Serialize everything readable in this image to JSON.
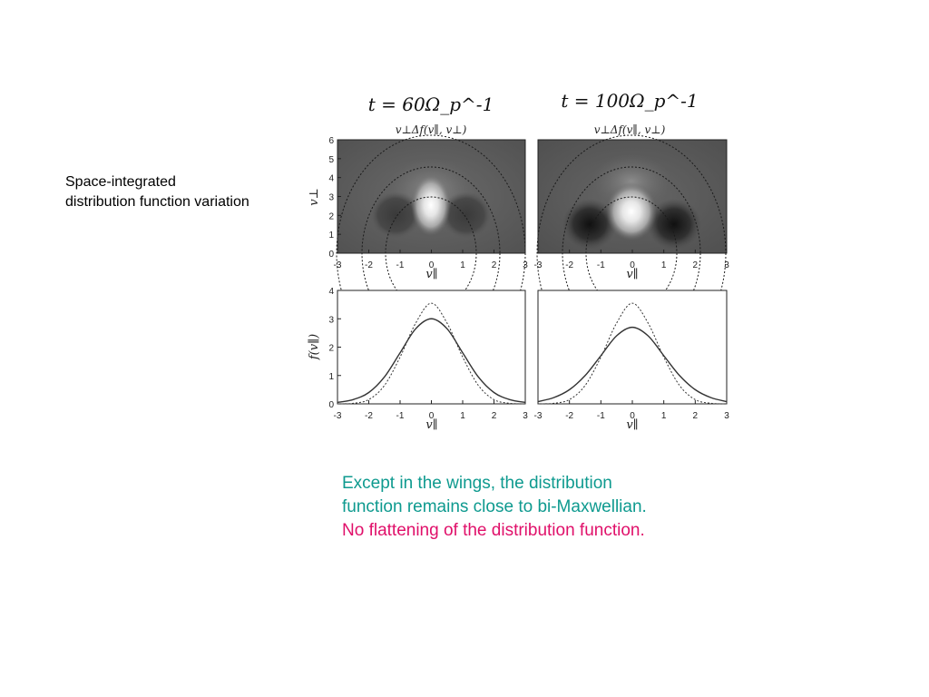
{
  "side_label": {
    "line1": "Space-integrated",
    "line2": "distribution function variation"
  },
  "caption": {
    "line1": "Except in  the wings, the distribution",
    "line2": "function remains close to bi-Maxwellian.",
    "line3": "No flattening of the distribution function.",
    "color_primary": "#0e9a8f",
    "color_emphasis": "#e0106a"
  },
  "chart_data": [
    {
      "type": "heatmap",
      "time_label": "t = 60Ω_p^-1",
      "title": "v⊥Δf(v∥, v⊥)",
      "xlabel": "v∥",
      "ylabel": "v⊥",
      "xlim": [
        -3,
        3
      ],
      "ylim": [
        0,
        6
      ],
      "x_ticks": [
        "-3",
        "-2",
        "-1",
        "0",
        "1",
        "2",
        "3"
      ],
      "y_ticks": [
        "0",
        "1",
        "2",
        "3",
        "4",
        "5",
        "6"
      ],
      "peak": {
        "x": 0,
        "y": 2.6,
        "intensity": 0.85
      },
      "dark_lobes": [
        {
          "x": -1.3,
          "y": 2.0,
          "intensity": 0.35
        },
        {
          "x": 1.3,
          "y": 2.0,
          "intensity": 0.35
        }
      ]
    },
    {
      "type": "heatmap",
      "time_label": "t = 100Ω_p^-1",
      "title": "v⊥Δf(v∥, v⊥)",
      "xlabel": "v∥",
      "ylabel": "",
      "xlim": [
        -3,
        3
      ],
      "ylim": [
        0,
        6
      ],
      "x_ticks": [
        "-3",
        "-2",
        "-1",
        "0",
        "1",
        "2",
        "3"
      ],
      "y_ticks": [],
      "peak": {
        "x": 0,
        "y": 2.2,
        "intensity": 1.0
      },
      "dark_lobes": [
        {
          "x": -1.4,
          "y": 1.4,
          "intensity": 0.75
        },
        {
          "x": 1.4,
          "y": 1.4,
          "intensity": 0.75
        }
      ]
    },
    {
      "type": "line",
      "xlabel": "v∥",
      "ylabel": "f(v∥)",
      "xlim": [
        -3,
        3
      ],
      "ylim": [
        0,
        4
      ],
      "x_ticks": [
        "-3",
        "-2",
        "-1",
        "0",
        "1",
        "2",
        "3"
      ],
      "y_ticks": [
        "0",
        "1",
        "2",
        "3",
        "4"
      ],
      "series": [
        {
          "style": "solid",
          "x": [
            -3,
            -2.5,
            -2,
            -1.5,
            -1,
            -0.5,
            0,
            0.5,
            1,
            1.5,
            2,
            2.5,
            3
          ],
          "y": [
            0.05,
            0.15,
            0.4,
            0.95,
            1.8,
            2.65,
            3.0,
            2.65,
            1.8,
            0.95,
            0.4,
            0.15,
            0.05
          ]
        },
        {
          "style": "dotted",
          "x": [
            -3,
            -2.5,
            -2,
            -1.5,
            -1,
            -0.5,
            0,
            0.5,
            1,
            1.5,
            2,
            2.5,
            3
          ],
          "y": [
            0.0,
            0.02,
            0.15,
            0.65,
            1.65,
            2.85,
            3.55,
            2.85,
            1.65,
            0.65,
            0.15,
            0.02,
            0.0
          ]
        }
      ]
    },
    {
      "type": "line",
      "xlabel": "v∥",
      "ylabel": "",
      "xlim": [
        -3,
        3
      ],
      "ylim": [
        0,
        4
      ],
      "x_ticks": [
        "-3",
        "-2",
        "-1",
        "0",
        "1",
        "2",
        "3"
      ],
      "y_ticks": [],
      "series": [
        {
          "style": "solid",
          "x": [
            -3,
            -2.5,
            -2,
            -1.5,
            -1,
            -0.5,
            0,
            0.5,
            1,
            1.5,
            2,
            2.5,
            3
          ],
          "y": [
            0.08,
            0.22,
            0.5,
            1.0,
            1.7,
            2.4,
            2.7,
            2.4,
            1.7,
            1.0,
            0.5,
            0.22,
            0.08
          ]
        },
        {
          "style": "dotted",
          "x": [
            -3,
            -2.5,
            -2,
            -1.5,
            -1,
            -0.5,
            0,
            0.5,
            1,
            1.5,
            2,
            2.5,
            3
          ],
          "y": [
            0.0,
            0.02,
            0.15,
            0.65,
            1.65,
            2.85,
            3.55,
            2.85,
            1.65,
            0.65,
            0.15,
            0.02,
            0.0
          ]
        }
      ]
    }
  ]
}
